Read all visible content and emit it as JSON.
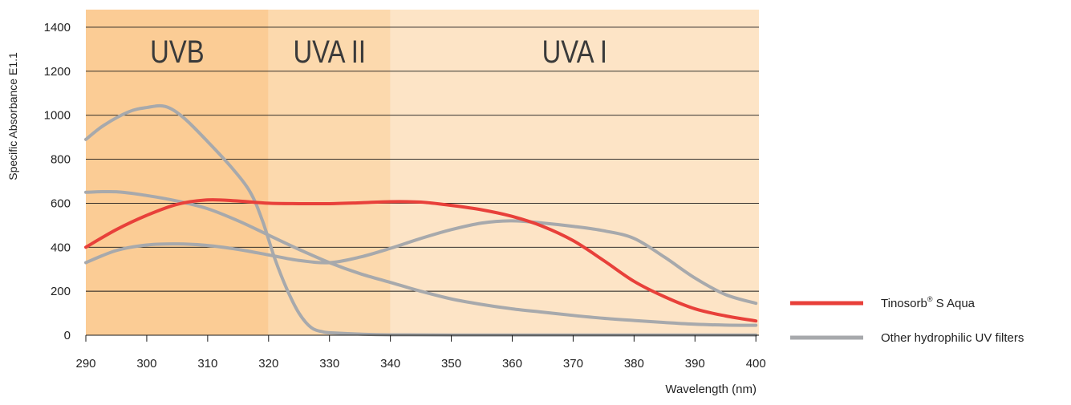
{
  "chart_data": {
    "type": "line",
    "xlabel": "Wavelength (nm)",
    "ylabel": "Specific Absorbance  E1.1",
    "xlim": [
      290,
      400.5
    ],
    "ylim": [
      0,
      1480
    ],
    "x_ticks": [
      "290",
      "300",
      "310",
      "320",
      "330",
      "340",
      "350",
      "360",
      "370",
      "380",
      "390",
      "400"
    ],
    "y_ticks": [
      "0",
      "200",
      "400",
      "600",
      "800",
      "1000",
      "1200",
      "1400"
    ],
    "gridlines": "horizontal",
    "regions": [
      {
        "label": "UVB",
        "from": 290,
        "to": 320,
        "color": "#fbcc95"
      },
      {
        "label": "UVA II",
        "from": 320,
        "to": 340,
        "color": "#fcd9ad"
      },
      {
        "label": "UVA I",
        "from": 340,
        "to": 400.5,
        "color": "#fde4c6"
      }
    ],
    "legend_position": "right",
    "legend": [
      {
        "name": "Tinosorb",
        "sup": "®",
        "suffix": " S Aqua",
        "color": "#e8403a"
      },
      {
        "name": "Other hydrophilic UV filters",
        "color": "#a7a9ac"
      }
    ],
    "series": [
      {
        "color": "#e8403a",
        "legend_index": 0,
        "x": [
          290,
          295,
          300,
          305,
          310,
          315,
          320,
          325,
          330,
          335,
          340,
          345,
          350,
          355,
          360,
          365,
          370,
          375,
          380,
          385,
          390,
          395,
          400
        ],
        "y": [
          400,
          480,
          545,
          595,
          615,
          610,
          600,
          598,
          598,
          602,
          607,
          605,
          590,
          570,
          540,
          495,
          430,
          340,
          245,
          175,
          120,
          88,
          65
        ]
      },
      {
        "color": "#a7a9ac",
        "legend_index": 1,
        "x": [
          290,
          293,
          297,
          300,
          303,
          306,
          310,
          314,
          317,
          319,
          321,
          323,
          325,
          327,
          329,
          331,
          335,
          340,
          350,
          360,
          370,
          380,
          390,
          400
        ],
        "y": [
          890,
          955,
          1015,
          1035,
          1040,
          990,
          880,
          760,
          650,
          520,
          350,
          210,
          100,
          35,
          15,
          10,
          5,
          2,
          1,
          1,
          1,
          1,
          1,
          1
        ]
      },
      {
        "color": "#a7a9ac",
        "legend_index": 1,
        "x": [
          290,
          295,
          300,
          305,
          310,
          315,
          320,
          325,
          330,
          335,
          340,
          345,
          350,
          355,
          360,
          365,
          370,
          375,
          380,
          385,
          390,
          395,
          400
        ],
        "y": [
          650,
          652,
          635,
          610,
          575,
          520,
          455,
          390,
          330,
          280,
          240,
          200,
          165,
          140,
          120,
          105,
          90,
          77,
          67,
          58,
          50,
          46,
          45
        ]
      },
      {
        "color": "#a7a9ac",
        "legend_index": 1,
        "x": [
          290,
          295,
          300,
          305,
          310,
          315,
          320,
          325,
          330,
          335,
          340,
          345,
          350,
          355,
          360,
          365,
          370,
          375,
          380,
          385,
          390,
          395,
          400
        ],
        "y": [
          330,
          385,
          410,
          415,
          408,
          390,
          365,
          340,
          330,
          355,
          395,
          440,
          480,
          510,
          520,
          510,
          495,
          475,
          440,
          355,
          260,
          185,
          145
        ]
      }
    ]
  }
}
